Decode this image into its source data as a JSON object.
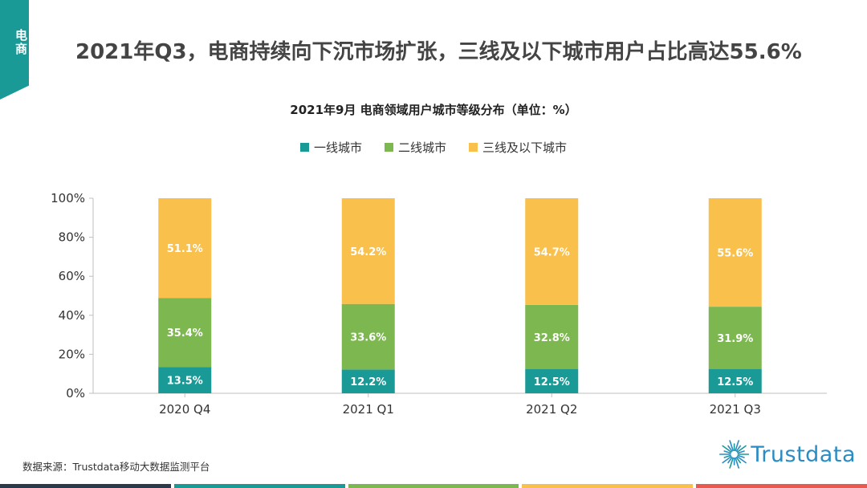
{
  "corner_tab": {
    "label": "电商"
  },
  "page_title": "2021年Q3，电商持续向下沉市场扩张，三线及以下城市用户占比高达55.6%",
  "source": "数据来源：Trustdata移动大数据监测平台",
  "logo": {
    "text": "Trustdata",
    "icon": "sunburst-icon",
    "color": "#2a8cc4"
  },
  "colors": {
    "tab": "#1a9a96",
    "stripes": [
      "#2b3a4a",
      "#1a9a96",
      "#7db750",
      "#f9c04c",
      "#e85a4f"
    ]
  },
  "chart_data": {
    "type": "bar",
    "stacked": true,
    "title": "2021年9月 电商领域用户城市等级分布（单位：%）",
    "categories": [
      "2020 Q4",
      "2021 Q1",
      "2021 Q2",
      "2021 Q3"
    ],
    "series": [
      {
        "name": "一线城市",
        "color": "#1a9a96",
        "values": [
          13.5,
          12.2,
          12.5,
          12.5
        ],
        "labels": [
          "13.5%",
          "12.2%",
          "12.5%",
          "12.5%"
        ]
      },
      {
        "name": "二线城市",
        "color": "#7db750",
        "values": [
          35.4,
          33.6,
          32.8,
          31.9
        ],
        "labels": [
          "35.4%",
          "33.6%",
          "32.8%",
          "31.9%"
        ]
      },
      {
        "name": "三线及以下城市",
        "color": "#f9c04c",
        "values": [
          51.1,
          54.2,
          54.7,
          55.6
        ],
        "labels": [
          "51.1%",
          "54.2%",
          "54.7%",
          "55.6%"
        ]
      }
    ],
    "ylim": [
      0,
      100
    ],
    "yticks": [
      "0%",
      "20%",
      "40%",
      "60%",
      "80%",
      "100%"
    ],
    "ytick_values": [
      0,
      20,
      40,
      60,
      80,
      100
    ],
    "legend_position": "top-center",
    "grid": false
  }
}
